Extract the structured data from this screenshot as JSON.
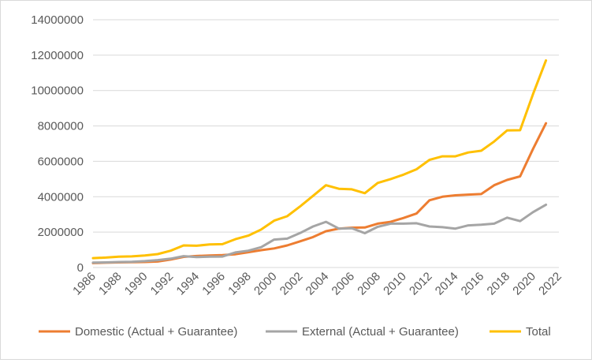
{
  "chart_data": {
    "type": "line",
    "title": "",
    "xlabel": "",
    "ylabel": "",
    "ylim": [
      0,
      14000000
    ],
    "xlim": [
      1986,
      2022
    ],
    "grid": true,
    "legend_position": "bottom",
    "y_ticks": [
      "0",
      "2000000",
      "4000000",
      "6000000",
      "8000000",
      "10000000",
      "12000000",
      "14000000"
    ],
    "x_ticks": [
      "1986",
      "1988",
      "1990",
      "1992",
      "1994",
      "1996",
      "1998",
      "2000",
      "2002",
      "2004",
      "2006",
      "2008",
      "2010",
      "2012",
      "2014",
      "2016",
      "2018",
      "2020",
      "2022"
    ],
    "x": [
      1986,
      1987,
      1988,
      1989,
      1990,
      1991,
      1992,
      1993,
      1994,
      1995,
      1996,
      1997,
      1998,
      1999,
      2000,
      2001,
      2002,
      2003,
      2004,
      2005,
      2006,
      2007,
      2008,
      2009,
      2010,
      2011,
      2012,
      2013,
      2014,
      2015,
      2016,
      2017,
      2018,
      2019,
      2020,
      2021
    ],
    "series": [
      {
        "name": "Domestic (Actual + Guarantee)",
        "color": "#ED7D31",
        "values": [
          250000,
          270000,
          290000,
          300000,
          310000,
          340000,
          450000,
          600000,
          650000,
          680000,
          700000,
          750000,
          860000,
          980000,
          1080000,
          1250000,
          1480000,
          1720000,
          2050000,
          2200000,
          2250000,
          2260000,
          2480000,
          2580000,
          2800000,
          3050000,
          3800000,
          4000000,
          4080000,
          4120000,
          4150000,
          4650000,
          4950000,
          5150000,
          6700000,
          8150000
        ]
      },
      {
        "name": "External (Actual + Guarantee)",
        "color": "#A5A5A5",
        "values": [
          280000,
          290000,
          310000,
          320000,
          360000,
          420000,
          500000,
          640000,
          590000,
          610000,
          620000,
          850000,
          950000,
          1150000,
          1580000,
          1630000,
          1950000,
          2320000,
          2580000,
          2200000,
          2220000,
          1940000,
          2300000,
          2480000,
          2480000,
          2500000,
          2320000,
          2280000,
          2200000,
          2380000,
          2420000,
          2480000,
          2820000,
          2620000,
          3130000,
          3550000
        ]
      },
      {
        "name": "Total",
        "color": "#FFC000",
        "values": [
          530000,
          560000,
          610000,
          630000,
          680000,
          760000,
          950000,
          1250000,
          1230000,
          1300000,
          1320000,
          1600000,
          1800000,
          2150000,
          2650000,
          2900000,
          3450000,
          4050000,
          4650000,
          4450000,
          4420000,
          4200000,
          4780000,
          5000000,
          5250000,
          5550000,
          6080000,
          6280000,
          6280000,
          6500000,
          6600000,
          7120000,
          7750000,
          7760000,
          9800000,
          11700000
        ]
      }
    ]
  }
}
